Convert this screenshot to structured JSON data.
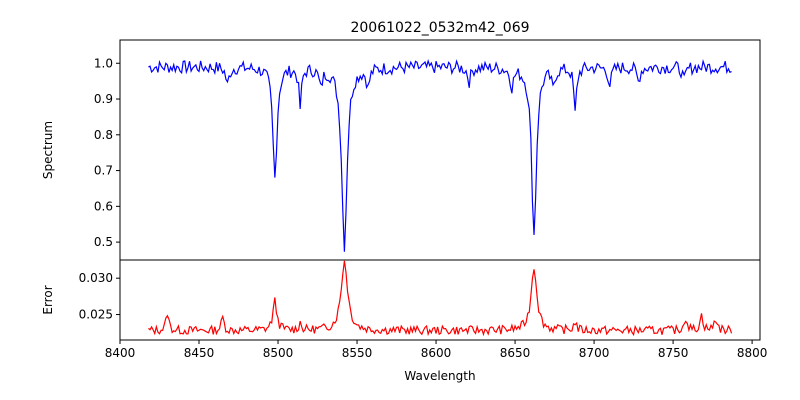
{
  "chart_data": [
    {
      "type": "line",
      "panel": "spectrum",
      "title": "20061022_0532m42_069",
      "xlabel": "",
      "ylabel": "Spectrum",
      "xlim": [
        8400,
        8805
      ],
      "ylim": [
        0.45,
        1.065
      ],
      "yticks": [
        0.5,
        0.6,
        0.7,
        0.8,
        0.9,
        1.0
      ],
      "ytick_labels": [
        "0.5",
        "0.6",
        "0.7",
        "0.8",
        "0.9",
        "1.0"
      ],
      "color": "#0000ff",
      "x_range": [
        8418,
        8787
      ],
      "step": 1,
      "continuum": 0.99,
      "noise_amplitude": 0.018,
      "absorption_lines": [
        {
          "center": 8498,
          "depth": 0.31,
          "width": 1.6
        },
        {
          "center": 8542,
          "depth": 0.5,
          "width": 2.0
        },
        {
          "center": 8662,
          "depth": 0.47,
          "width": 1.8
        },
        {
          "center": 8468,
          "depth": 0.05,
          "width": 1.2
        },
        {
          "center": 8514,
          "depth": 0.11,
          "width": 1.0
        },
        {
          "center": 8527,
          "depth": 0.05,
          "width": 1.2
        },
        {
          "center": 8557,
          "depth": 0.05,
          "width": 1.2
        },
        {
          "center": 8621,
          "depth": 0.04,
          "width": 1.2
        },
        {
          "center": 8648,
          "depth": 0.05,
          "width": 1.2
        },
        {
          "center": 8674,
          "depth": 0.05,
          "width": 1.2
        },
        {
          "center": 8688,
          "depth": 0.13,
          "width": 1.0
        },
        {
          "center": 8710,
          "depth": 0.05,
          "width": 1.2
        },
        {
          "center": 8728,
          "depth": 0.04,
          "width": 1.2
        },
        {
          "center": 8757,
          "depth": 0.04,
          "width": 1.2
        }
      ]
    },
    {
      "type": "line",
      "panel": "error",
      "xlabel": "Wavelength",
      "ylabel": "Error",
      "xlim": [
        8400,
        8805
      ],
      "ylim": [
        0.0215,
        0.0325
      ],
      "yticks": [
        0.025,
        0.03
      ],
      "ytick_labels": [
        "0.025",
        "0.030"
      ],
      "xticks": [
        8400,
        8450,
        8500,
        8550,
        8600,
        8650,
        8700,
        8750,
        8800
      ],
      "xtick_labels": [
        "8400",
        "8450",
        "8500",
        "8550",
        "8600",
        "8650",
        "8700",
        "8750",
        "8800"
      ],
      "color": "#ff0000",
      "x_range": [
        8418,
        8787
      ],
      "step": 1,
      "baseline": 0.0228,
      "noise_amplitude": 0.0006,
      "peaks": [
        {
          "center": 8542,
          "height": 0.0095,
          "width": 2.5
        },
        {
          "center": 8662,
          "height": 0.0088,
          "width": 2.2
        },
        {
          "center": 8498,
          "height": 0.004,
          "width": 1.5
        },
        {
          "center": 8430,
          "height": 0.0025,
          "width": 1.0
        },
        {
          "center": 8465,
          "height": 0.0018,
          "width": 1.0
        },
        {
          "center": 8514,
          "height": 0.001,
          "width": 1.0
        },
        {
          "center": 8688,
          "height": 0.0012,
          "width": 1.0
        },
        {
          "center": 8758,
          "height": 0.0018,
          "width": 1.2
        },
        {
          "center": 8768,
          "height": 0.002,
          "width": 1.2
        },
        {
          "center": 8777,
          "height": 0.0016,
          "width": 1.2
        }
      ]
    }
  ]
}
